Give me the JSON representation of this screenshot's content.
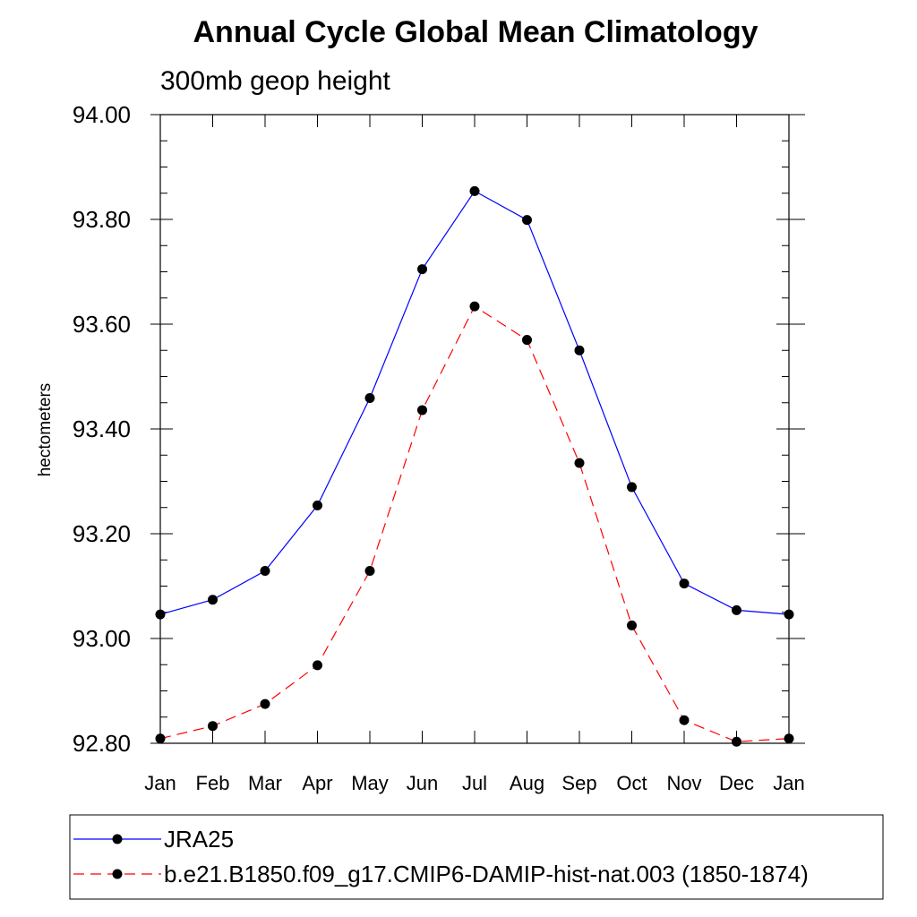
{
  "chart_data": {
    "type": "line",
    "title": "Annual Cycle Global Mean Climatology",
    "subtitle": "300mb geop height",
    "xlabel": "",
    "ylabel": "hectometers",
    "categories": [
      "Jan",
      "Feb",
      "Mar",
      "Apr",
      "May",
      "Jun",
      "Jul",
      "Aug",
      "Sep",
      "Oct",
      "Nov",
      "Dec",
      "Jan"
    ],
    "ylim": [
      92.8,
      94.0
    ],
    "yticks": [
      92.8,
      93.0,
      93.2,
      93.4,
      93.6,
      93.8,
      94.0
    ],
    "ytick_labels": [
      "92.80",
      "93.00",
      "93.20",
      "93.40",
      "93.60",
      "93.80",
      "94.00"
    ],
    "minor_ytick_step": 0.05,
    "grid": false,
    "legend_placement": "bottom",
    "series": [
      {
        "name": "JRA25",
        "color": "#0000ff",
        "line_style": "solid",
        "marker": "filled-circle",
        "values": [
          93.046,
          93.074,
          93.129,
          93.254,
          93.459,
          93.705,
          93.854,
          93.799,
          93.55,
          93.289,
          93.105,
          93.054,
          93.046
        ]
      },
      {
        "name": "b.e21.B1850.f09_g17.CMIP6-DAMIP-hist-nat.003 (1850-1874)",
        "color": "#ff0000",
        "line_style": "dashed",
        "marker": "filled-circle",
        "values": [
          92.809,
          92.833,
          92.875,
          92.949,
          93.129,
          93.436,
          93.634,
          93.57,
          93.335,
          93.025,
          92.844,
          92.803,
          92.809
        ]
      }
    ]
  }
}
